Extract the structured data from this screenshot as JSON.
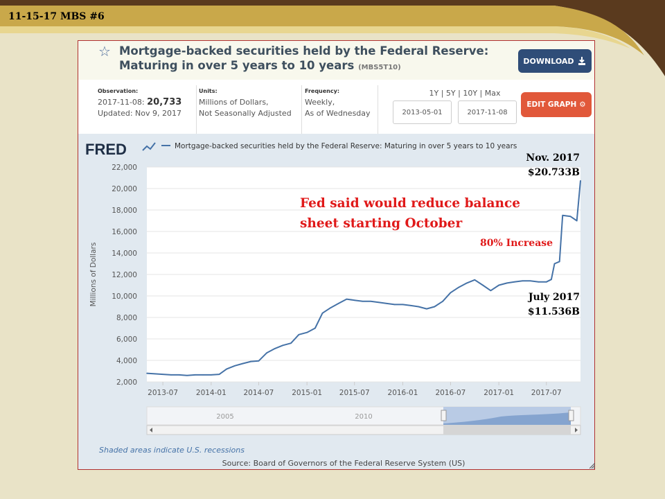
{
  "slide": {
    "title": "11-15-17 MBS #6",
    "colors": {
      "background": "#e9e3c7",
      "band_dark": "#5a3a1e",
      "band_gold": "#c9a84a"
    }
  },
  "header": {
    "title_line1": "Mortgage-backed securities held by the Federal Reserve:",
    "title_line2": "Maturing in over 5 years to 10 years",
    "series_code": "(MBS5T10)",
    "download_label": "DOWNLOAD"
  },
  "meta": {
    "observation_label": "Observation:",
    "observation_date": "2017-11-08:",
    "observation_value": "20,733",
    "updated": "Updated: Nov 9, 2017",
    "units_label": "Units:",
    "units_line1": "Millions of Dollars,",
    "units_line2": "Not Seasonally Adjusted",
    "frequency_label": "Frequency:",
    "frequency_line1": "Weekly,",
    "frequency_line2": "As of Wednesday"
  },
  "range": {
    "links": "1Y | 5Y | 10Y | Max",
    "start": "2013-05-01",
    "end": "2017-11-08",
    "edit_label": "EDIT GRAPH"
  },
  "chart_data": {
    "type": "line",
    "legend": "Mortgage-backed securities held by the Federal Reserve: Maturing in over 5 years to 10 years",
    "ylabel": "Millions of Dollars",
    "xlabel": "",
    "ylim": [
      2000,
      22000
    ],
    "xlim": [
      "2013-05-01",
      "2017-11-08"
    ],
    "y_ticks": [
      "2,000",
      "4,000",
      "6,000",
      "8,000",
      "10,000",
      "12,000",
      "14,000",
      "16,000",
      "18,000",
      "20,000",
      "22,000"
    ],
    "x_ticks": [
      "2013-07",
      "2014-01",
      "2014-07",
      "2015-01",
      "2015-07",
      "2016-01",
      "2016-07",
      "2017-01",
      "2017-07"
    ],
    "grid": true,
    "line_color": "#4572a7",
    "series": [
      {
        "x": [
          "2013-05-01",
          "2013-06-01",
          "2013-07-01",
          "2013-08-01",
          "2013-09-01",
          "2013-10-01",
          "2013-11-01",
          "2013-12-01",
          "2014-01-01",
          "2014-02-01",
          "2014-03-01",
          "2014-04-01",
          "2014-05-01",
          "2014-06-01",
          "2014-07-01",
          "2014-08-01",
          "2014-09-01",
          "2014-10-01",
          "2014-11-01",
          "2014-12-01",
          "2015-01-01",
          "2015-02-01",
          "2015-03-01",
          "2015-04-01",
          "2015-05-01",
          "2015-06-01",
          "2015-07-01",
          "2015-08-01",
          "2015-09-01",
          "2015-10-01",
          "2015-11-01",
          "2015-12-01",
          "2016-01-01",
          "2016-02-01",
          "2016-03-01",
          "2016-04-01",
          "2016-05-01",
          "2016-06-01",
          "2016-07-01",
          "2016-08-01",
          "2016-09-01",
          "2016-10-01",
          "2016-11-01",
          "2016-12-01",
          "2017-01-01",
          "2017-02-01",
          "2017-03-01",
          "2017-04-01",
          "2017-05-01",
          "2017-06-01",
          "2017-07-01",
          "2017-07-20",
          "2017-08-01",
          "2017-08-20",
          "2017-09-01",
          "2017-10-01",
          "2017-10-25",
          "2017-11-08"
        ],
        "values": [
          2800,
          2750,
          2700,
          2650,
          2650,
          2600,
          2650,
          2650,
          2650,
          2700,
          3200,
          3500,
          3700,
          3900,
          3950,
          4700,
          5100,
          5400,
          5600,
          6400,
          6600,
          7000,
          8400,
          8900,
          9300,
          9700,
          9600,
          9500,
          9500,
          9400,
          9300,
          9200,
          9200,
          9100,
          9000,
          8800,
          9000,
          9500,
          10300,
          10800,
          11200,
          11500,
          11000,
          10500,
          11000,
          11200,
          11300,
          11400,
          11400,
          11300,
          11300,
          11536,
          13000,
          13200,
          17500,
          17400,
          17000,
          20733
        ]
      }
    ],
    "navigator_labels": [
      "2005",
      "2010"
    ],
    "recession_note": "Shaded areas indicate U.S. recessions",
    "source": "Source: Board of Governors of the Federal Reserve System (US)"
  },
  "annotations": {
    "nov_line1": "Nov. 2017",
    "nov_line2": "$20.733B",
    "fed_line1": "Fed said would reduce balance",
    "fed_line2": "sheet starting October",
    "increase": "80% Increase",
    "july_line1": "July 2017",
    "july_line2": "$11.536B"
  }
}
